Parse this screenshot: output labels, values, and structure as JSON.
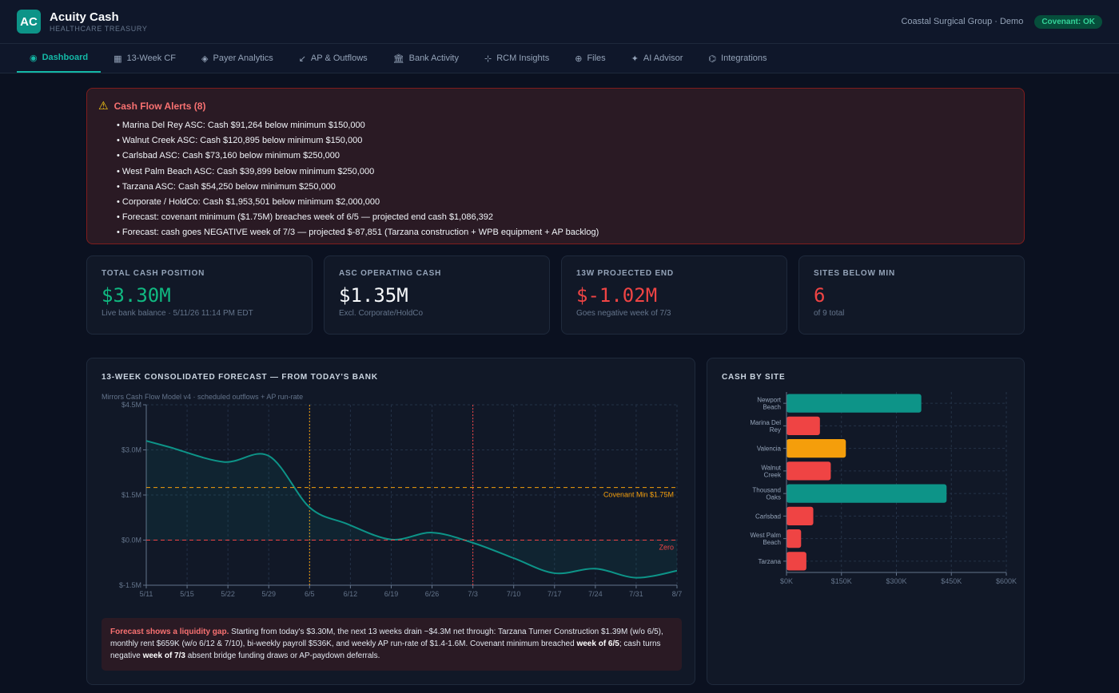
{
  "header": {
    "logo_text": "AC",
    "app_name": "Acuity Cash",
    "app_sub": "HEALTHCARE TREASURY",
    "org": "Coastal Surgical Group · Demo",
    "covenant_badge": "Covenant: OK"
  },
  "nav": [
    {
      "label": "Dashboard",
      "icon": "◉",
      "icon_name": "dashboard-icon",
      "active": true
    },
    {
      "label": "13-Week CF",
      "icon": "▦",
      "icon_name": "calendar-icon"
    },
    {
      "label": "Payer Analytics",
      "icon": "◈",
      "icon_name": "diamond-icon"
    },
    {
      "label": "AP & Outflows",
      "icon": "↙",
      "icon_name": "arrow-down-left-icon"
    },
    {
      "label": "Bank Activity",
      "icon": "🏛",
      "icon_name": "bank-icon"
    },
    {
      "label": "RCM Insights",
      "icon": "⊹",
      "icon_name": "insights-icon"
    },
    {
      "label": "Files",
      "icon": "⊕",
      "icon_name": "files-icon"
    },
    {
      "label": "AI Advisor",
      "icon": "✦",
      "icon_name": "sparkle-icon"
    },
    {
      "label": "Integrations",
      "icon": "⌬",
      "icon_name": "integrations-icon"
    }
  ],
  "alerts": {
    "title": "Cash Flow Alerts (8)",
    "items": [
      "• Marina Del Rey ASC: Cash $91,264 below minimum $150,000",
      "• Walnut Creek ASC: Cash $120,895 below minimum $150,000",
      "• Carlsbad ASC: Cash $73,160 below minimum $250,000",
      "• West Palm Beach ASC: Cash $39,899 below minimum $250,000",
      "• Tarzana ASC: Cash $54,250 below minimum $250,000",
      "• Corporate / HoldCo: Cash $1,953,501 below minimum $2,000,000",
      "• Forecast: covenant minimum ($1.75M) breaches week of 6/5 — projected end cash $1,086,392",
      "• Forecast: cash goes NEGATIVE week of 7/3 — projected $-87,851 (Tarzana construction + WPB equipment + AP backlog)"
    ]
  },
  "kpis": [
    {
      "label": "TOTAL CASH POSITION",
      "value": "$3.30M",
      "sub": "Live bank balance · 5/11/26 11:14 PM EDT",
      "color": "#10b981"
    },
    {
      "label": "ASC OPERATING CASH",
      "value": "$1.35M",
      "sub": "Excl. Corporate/HoldCo",
      "color": "#f8fafc"
    },
    {
      "label": "13W PROJECTED END",
      "value": "$-1.02M",
      "sub": "Goes negative week of 7/3",
      "color": "#ef4444"
    },
    {
      "label": "SITES BELOW MIN",
      "value": "6",
      "sub": "of 9 total",
      "color": "#ef4444"
    }
  ],
  "forecast": {
    "title": "13-WEEK CONSOLIDATED FORECAST — FROM TODAY'S BANK",
    "subtitle": "Mirrors Cash Flow Model v4 · scheduled outflows + AP run-rate",
    "note": {
      "lead": "Forecast shows a liquidity gap.",
      "p1": " Starting from today's $3.30M, the next 13 weeks drain ~$4.3M net through: Tarzana Turner Construction $1.39M (w/o 6/5), monthly rent $659K (w/o 6/12 & 7/10), bi-weekly payroll $536K, and weekly AP run-rate of $1.4-1.6M. Covenant minimum breached ",
      "b1": "week of 6/5",
      "p2": "; cash turns negative ",
      "b2": "week of 7/3",
      "p3": " absent bridge funding draws or AP-paydown deferrals."
    }
  },
  "site_panel": {
    "title": "CASH BY SITE"
  },
  "chart_data": [
    {
      "type": "line",
      "x": [
        "5/11",
        "5/15",
        "5/22",
        "5/29",
        "6/5",
        "6/12",
        "6/19",
        "6/26",
        "7/3",
        "7/10",
        "7/17",
        "7/24",
        "7/31",
        "8/7"
      ],
      "points": [
        [
          0,
          3.3
        ],
        [
          0.55,
          3.1
        ],
        [
          1.9,
          2.6
        ],
        [
          3.0,
          2.8
        ],
        [
          4.0,
          1.09
        ],
        [
          4.9,
          0.55
        ],
        [
          6.0,
          0.02
        ],
        [
          7.0,
          0.25
        ],
        [
          8.0,
          -0.09
        ],
        [
          9.0,
          -0.6
        ],
        [
          10.0,
          -1.1
        ],
        [
          11.0,
          -0.95
        ],
        [
          12.0,
          -1.25
        ],
        [
          13.0,
          -1.02
        ]
      ],
      "y_ticks": [
        "$4.5M",
        "$3.0M",
        "$1.5M",
        "$0.0M",
        "$-1.5M"
      ],
      "ylim": [
        -1.5,
        4.5
      ],
      "covenant": {
        "value": 1.75,
        "label": "Covenant Min $1.75M"
      },
      "zero": {
        "value": 0,
        "label": "Zero"
      },
      "markers": [
        "6/5",
        "7/3"
      ],
      "colors": {
        "line": "#0d9488",
        "covenant": "#f59e0b",
        "zero": "#ef4444"
      }
    },
    {
      "type": "bar",
      "orientation": "horizontal",
      "categories": [
        [
          "Newport",
          "Beach"
        ],
        [
          "Marina Del",
          "Rey"
        ],
        [
          "Valencia"
        ],
        [
          "Walnut",
          "Creek"
        ],
        [
          "Thousand",
          "Oaks"
        ],
        [
          "Carlsbad"
        ],
        [
          "West Palm",
          "Beach"
        ],
        [
          "Tarzana"
        ]
      ],
      "values": [
        368000,
        91264,
        162000,
        120895,
        437000,
        73160,
        39899,
        54250
      ],
      "colors": [
        "#0d9488",
        "#ef4444",
        "#f59e0b",
        "#ef4444",
        "#0d9488",
        "#ef4444",
        "#ef4444",
        "#ef4444"
      ],
      "x_ticks": [
        "$0K",
        "$150K",
        "$300K",
        "$450K",
        "$600K"
      ],
      "xlim": [
        0,
        600000
      ]
    }
  ]
}
